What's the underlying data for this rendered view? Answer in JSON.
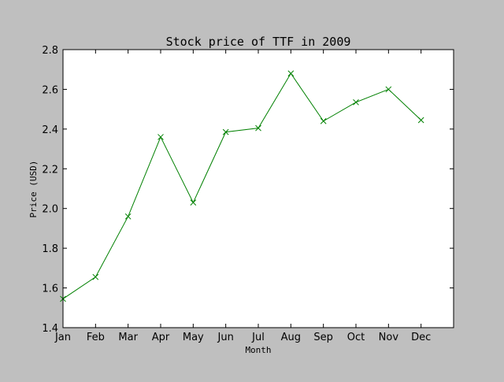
{
  "chart_data": {
    "type": "line",
    "title": "Stock price of TTF in 2009",
    "xlabel": "Month",
    "ylabel": "Price (USD)",
    "categories": [
      "Jan",
      "Feb",
      "Mar",
      "Apr",
      "May",
      "Jun",
      "Jul",
      "Aug",
      "Sep",
      "Oct",
      "Nov",
      "Dec"
    ],
    "xlim": [
      0,
      12
    ],
    "ylim": [
      1.4,
      2.8
    ],
    "y_ticks": [
      "1.4",
      "1.6",
      "1.8",
      "2.0",
      "2.2",
      "2.4",
      "2.6",
      "2.8"
    ],
    "grid": false,
    "legend": "none",
    "marker": "x",
    "series": [
      {
        "color": "#008000",
        "values": [
          1.545,
          1.655,
          1.96,
          2.36,
          2.03,
          2.385,
          2.405,
          2.68,
          2.44,
          2.535,
          2.6,
          2.445
        ]
      }
    ],
    "colors": {
      "figure_background": "#bfbfbf",
      "plot_background": "#ffffff",
      "line": "#008000"
    }
  }
}
